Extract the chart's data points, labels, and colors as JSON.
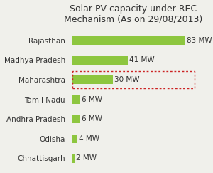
{
  "title": "Solar PV capacity under REC\nMechanism (As on 29/08/2013)",
  "categories": [
    "Chhattisgarh",
    "Odisha",
    "Andhra Pradesh",
    "Tamil Nadu",
    "Maharashtra",
    "Madhya Pradesh",
    "Rajasthan"
  ],
  "values": [
    2,
    4,
    6,
    6,
    30,
    41,
    83
  ],
  "bar_color": "#8dc63f",
  "highlight_index": 4,
  "xlim": [
    0,
    90
  ],
  "background_color": "#f0f0eb",
  "title_fontsize": 9,
  "label_fontsize": 7.5,
  "value_fontsize": 7.5,
  "highlight_box_color": "#cc2222",
  "bar_height": 0.45
}
